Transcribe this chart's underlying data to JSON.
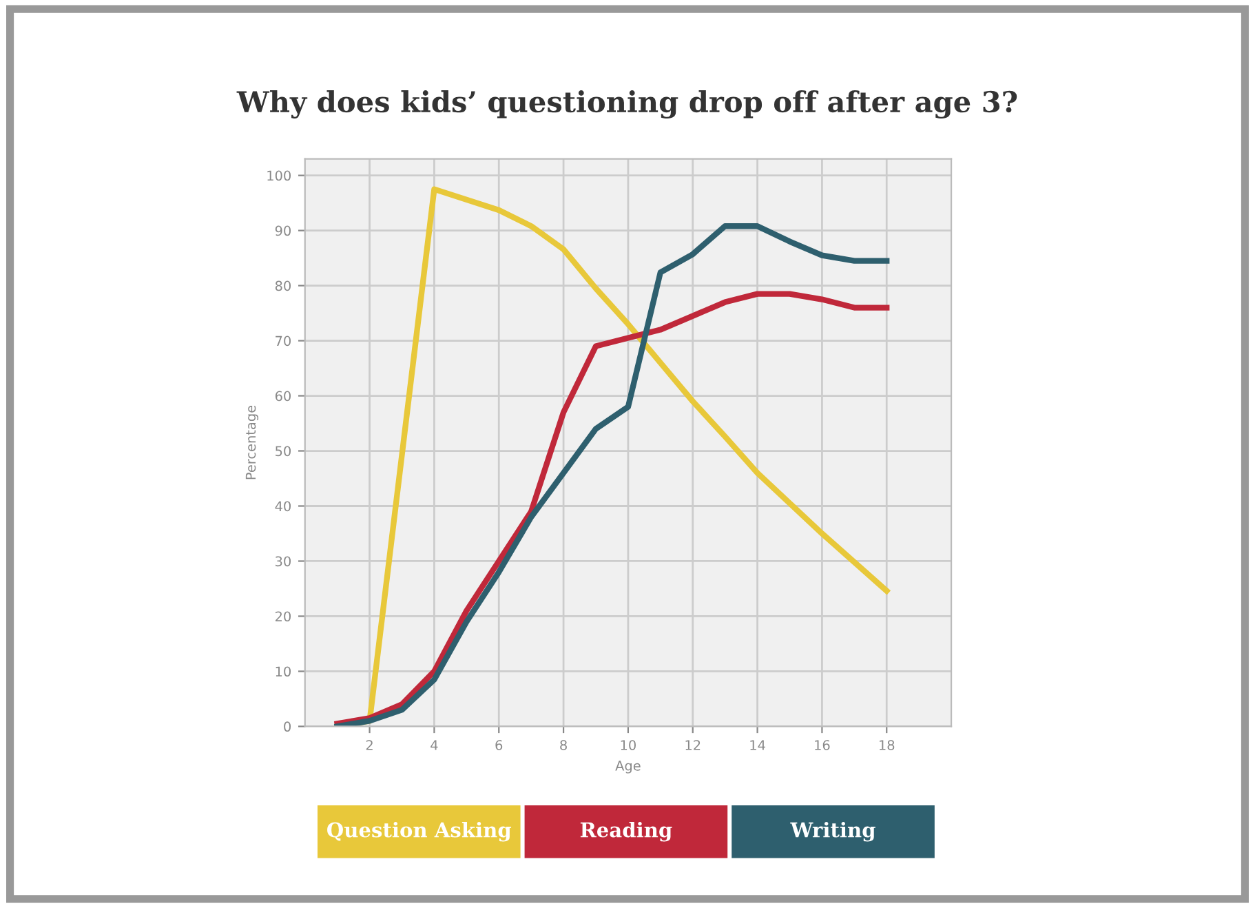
{
  "chart_data": {
    "type": "line",
    "title": "Why does kids’ questioning drop off after age 3?",
    "xlabel": "Age",
    "ylabel": "Percentage",
    "xlim": [
      0,
      20
    ],
    "ylim": [
      0,
      103
    ],
    "xticks": [
      2,
      4,
      6,
      8,
      10,
      12,
      14,
      16,
      18
    ],
    "yticks": [
      0,
      10,
      20,
      30,
      40,
      50,
      60,
      70,
      80,
      90,
      100
    ],
    "grid": true,
    "legend": "bottom",
    "marker": "none",
    "line_style": "solid",
    "series": [
      {
        "name": "Question Asking",
        "color": "#e8c83a",
        "x": [
          1,
          2,
          4,
          6,
          7,
          8,
          9,
          10,
          11,
          12,
          13,
          14,
          16,
          18
        ],
        "values": [
          0,
          1,
          97.5,
          93.7,
          90.8,
          86.6,
          79.5,
          73,
          66,
          59,
          52.6,
          46,
          35,
          24.6
        ]
      },
      {
        "name": "Reading",
        "color": "#c0283a",
        "x": [
          1,
          2,
          3,
          4,
          5,
          6,
          7,
          8,
          9,
          10,
          11,
          12,
          13,
          14,
          15,
          16,
          17,
          18
        ],
        "values": [
          0.5,
          1.5,
          4,
          10,
          21,
          30,
          39,
          57,
          69,
          70.5,
          72,
          74.5,
          77,
          78.5,
          78.5,
          77.5,
          76,
          76
        ]
      },
      {
        "name": "Writing",
        "color": "#2e5f6e",
        "x": [
          1,
          2,
          3,
          4,
          5,
          6,
          7,
          8,
          9,
          10,
          11,
          12,
          13,
          14,
          15,
          16,
          17,
          18
        ],
        "values": [
          0,
          1,
          3,
          8.5,
          19,
          28,
          38,
          46,
          54,
          58,
          82.4,
          85.7,
          90.8,
          90.8,
          88,
          85.5,
          84.5,
          84.5
        ]
      }
    ]
  }
}
